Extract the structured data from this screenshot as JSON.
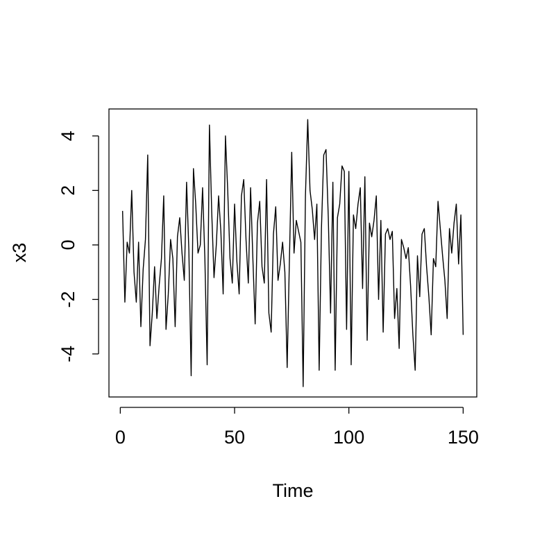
{
  "chart_data": {
    "type": "line",
    "x_label": "Time",
    "y_label": "x3",
    "color": "#000000",
    "x": [
      1,
      2,
      3,
      4,
      5,
      6,
      7,
      8,
      9,
      10,
      11,
      12,
      13,
      14,
      15,
      16,
      17,
      18,
      19,
      20,
      21,
      22,
      23,
      24,
      25,
      26,
      27,
      28,
      29,
      30,
      31,
      32,
      33,
      34,
      35,
      36,
      37,
      38,
      39,
      40,
      41,
      42,
      43,
      44,
      45,
      46,
      47,
      48,
      49,
      50,
      51,
      52,
      53,
      54,
      55,
      56,
      57,
      58,
      59,
      60,
      61,
      62,
      63,
      64,
      65,
      66,
      67,
      68,
      69,
      70,
      71,
      72,
      73,
      74,
      75,
      76,
      77,
      78,
      79,
      80,
      81,
      82,
      83,
      84,
      85,
      86,
      87,
      88,
      89,
      90,
      91,
      92,
      93,
      94,
      95,
      96,
      97,
      98,
      99,
      100,
      101,
      102,
      103,
      104,
      105,
      106,
      107,
      108,
      109,
      110,
      111,
      112,
      113,
      114,
      115,
      116,
      117,
      118,
      119,
      120,
      121,
      122,
      123,
      124,
      125,
      126,
      127,
      128,
      129,
      130,
      131,
      132,
      133,
      134,
      135,
      136,
      137,
      138,
      139,
      140,
      141,
      142,
      143,
      144,
      145,
      146,
      147,
      148,
      149,
      150
    ],
    "values": [
      1.25,
      -2.1,
      0.1,
      -0.3,
      2.0,
      -1.0,
      -2.1,
      0.1,
      -3.0,
      -0.9,
      0.2,
      3.3,
      -3.7,
      -2.5,
      -0.8,
      -2.7,
      -1.5,
      -0.5,
      1.8,
      -3.1,
      -1.8,
      0.2,
      -0.5,
      -3.0,
      0.3,
      1.0,
      -0.3,
      -1.3,
      2.3,
      -0.2,
      -4.8,
      2.8,
      1.5,
      -0.3,
      0.0,
      2.1,
      -0.5,
      -4.4,
      4.4,
      1.2,
      -1.2,
      0.0,
      1.8,
      0.5,
      -1.8,
      4.0,
      2.0,
      -0.5,
      -1.4,
      1.5,
      -0.6,
      -1.8,
      1.8,
      2.4,
      0.2,
      -1.4,
      2.1,
      -0.5,
      -2.9,
      0.8,
      1.6,
      -0.8,
      -1.4,
      2.4,
      -2.5,
      -3.2,
      0.4,
      1.4,
      -1.3,
      -0.7,
      0.1,
      -1.0,
      -4.5,
      -0.5,
      3.4,
      -0.3,
      0.9,
      0.5,
      0.1,
      -5.2,
      1.8,
      4.6,
      2.0,
      1.3,
      0.2,
      1.5,
      -4.6,
      0.6,
      3.3,
      3.5,
      1.0,
      -2.5,
      2.3,
      -4.6,
      1.0,
      1.5,
      2.9,
      2.7,
      -3.1,
      2.7,
      -4.4,
      1.1,
      0.6,
      1.5,
      2.1,
      -1.6,
      2.5,
      -3.5,
      0.8,
      0.3,
      0.9,
      1.8,
      -2.0,
      0.9,
      -3.2,
      0.4,
      0.6,
      0.2,
      0.5,
      -2.7,
      -1.6,
      -3.8,
      0.2,
      -0.1,
      -0.5,
      -0.1,
      -1.5,
      -3.3,
      -4.6,
      -0.4,
      -1.9,
      0.4,
      0.6,
      -0.8,
      -1.9,
      -3.3,
      -0.5,
      -0.8,
      1.6,
      0.6,
      -0.4,
      -1.3,
      -2.7,
      0.6,
      -0.3,
      0.8,
      1.5,
      -0.7,
      1.1,
      -3.3
    ],
    "xlim": [
      -4.96,
      155.96
    ],
    "ylim": [
      -5.58,
      4.99
    ],
    "xticks": [
      0,
      50,
      100,
      150
    ],
    "yticks": [
      -4,
      -2,
      0,
      2,
      4
    ]
  }
}
